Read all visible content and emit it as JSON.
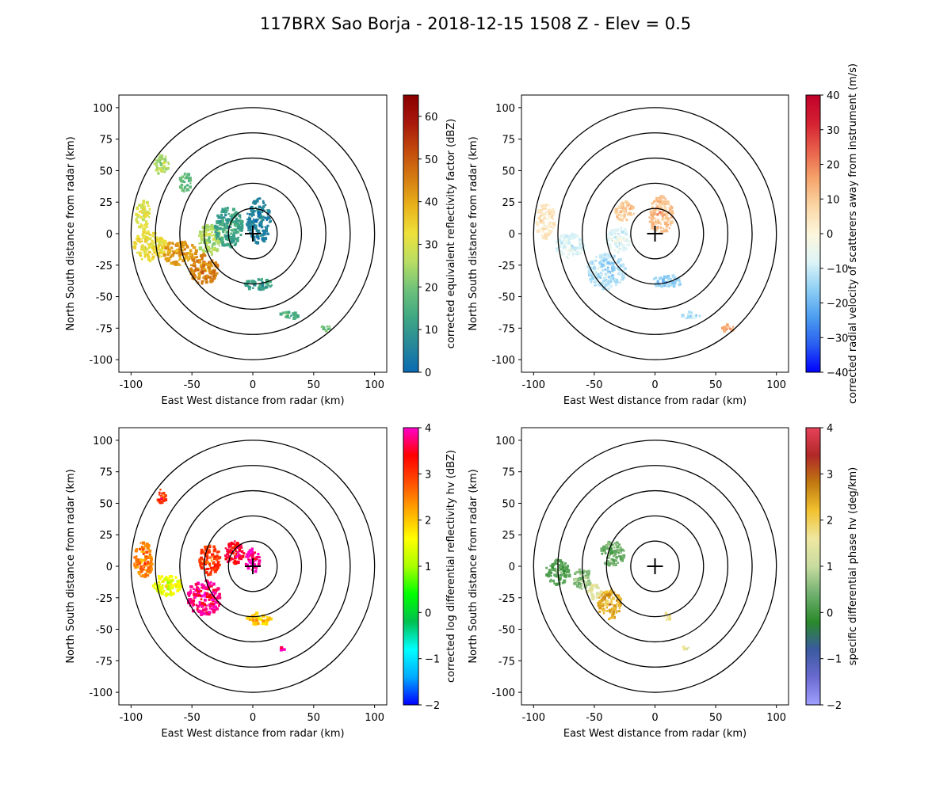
{
  "figure": {
    "title": "117BRX Sao Borja - 2018-12-15 1508 Z -  Elev = 0.5"
  },
  "chart_data": [
    {
      "type": "heatmap",
      "xlabel": "East West distance from radar (km)",
      "ylabel": "North South distance from radar (km)",
      "xlim": [
        -110,
        110
      ],
      "ylim": [
        -110,
        110
      ],
      "xticks": [
        -100,
        -50,
        0,
        50,
        100
      ],
      "yticks": [
        -100,
        -75,
        -50,
        -25,
        0,
        25,
        50,
        75,
        100
      ],
      "range_rings_km": [
        20,
        40,
        60,
        80,
        100
      ],
      "colorbar": {
        "label": "corrected equivalent reflectivity factor (dBZ)",
        "range": [
          0,
          65
        ],
        "ticks": [
          0,
          10,
          20,
          30,
          40,
          50,
          60
        ],
        "colors": [
          "#0a6ab2",
          "#27889a",
          "#3fa883",
          "#6fc27a",
          "#b9de63",
          "#eee13a",
          "#e9b21a",
          "#d47c12",
          "#c24a0c",
          "#a8170b",
          "#8a0000"
        ]
      },
      "echo_regions": [
        {
          "x": -85,
          "y": -10,
          "rx": 14,
          "ry": 12,
          "v": 33
        },
        {
          "x": -60,
          "y": -15,
          "rx": 14,
          "ry": 10,
          "v": 42
        },
        {
          "x": -40,
          "y": -28,
          "rx": 12,
          "ry": 12,
          "v": 45
        },
        {
          "x": -35,
          "y": -5,
          "rx": 10,
          "ry": 12,
          "v": 25
        },
        {
          "x": -90,
          "y": 15,
          "rx": 6,
          "ry": 12,
          "v": 30
        },
        {
          "x": -75,
          "y": 55,
          "rx": 6,
          "ry": 8,
          "v": 25
        },
        {
          "x": -55,
          "y": 40,
          "rx": 5,
          "ry": 8,
          "v": 18
        },
        {
          "x": -20,
          "y": 5,
          "rx": 12,
          "ry": 16,
          "v": 12
        },
        {
          "x": 5,
          "y": 10,
          "rx": 10,
          "ry": 18,
          "v": 5
        },
        {
          "x": 5,
          "y": -40,
          "rx": 12,
          "ry": 5,
          "v": 12
        },
        {
          "x": 30,
          "y": -65,
          "rx": 8,
          "ry": 3,
          "v": 15
        },
        {
          "x": 60,
          "y": -75,
          "rx": 4,
          "ry": 3,
          "v": 20
        }
      ]
    },
    {
      "type": "heatmap",
      "xlabel": "East West distance from radar (km)",
      "ylabel": "North South distance from radar (km)",
      "xlim": [
        -110,
        110
      ],
      "ylim": [
        -110,
        110
      ],
      "xticks": [
        -100,
        -50,
        0,
        50,
        100
      ],
      "yticks": [
        -100,
        -75,
        -50,
        -25,
        0,
        25,
        50,
        75,
        100
      ],
      "range_rings_km": [
        20,
        40,
        60,
        80,
        100
      ],
      "colorbar": {
        "label": "corrected radial velocity of scatterers away from instrument (m/s)",
        "range": [
          -40,
          40
        ],
        "ticks": [
          -40,
          -30,
          -20,
          -10,
          0,
          10,
          20,
          30,
          40
        ],
        "colors": [
          "#0000ff",
          "#2a5ef0",
          "#4d9ef0",
          "#8fd0f5",
          "#dff5f7",
          "#fdf6dc",
          "#fbd6a5",
          "#f5a36a",
          "#e8604a",
          "#d42032",
          "#c0002a"
        ]
      },
      "echo_regions": [
        {
          "x": -90,
          "y": 10,
          "rx": 8,
          "ry": 14,
          "v": 4
        },
        {
          "x": -70,
          "y": -10,
          "rx": 12,
          "ry": 10,
          "v": -8
        },
        {
          "x": -40,
          "y": -30,
          "rx": 16,
          "ry": 14,
          "v": -12
        },
        {
          "x": -30,
          "y": -5,
          "rx": 10,
          "ry": 10,
          "v": -8
        },
        {
          "x": -25,
          "y": 18,
          "rx": 8,
          "ry": 8,
          "v": 10
        },
        {
          "x": 5,
          "y": 15,
          "rx": 10,
          "ry": 15,
          "v": 12
        },
        {
          "x": 10,
          "y": -38,
          "rx": 12,
          "ry": 5,
          "v": -15
        },
        {
          "x": 30,
          "y": -65,
          "rx": 8,
          "ry": 3,
          "v": -12
        },
        {
          "x": 60,
          "y": -75,
          "rx": 5,
          "ry": 3,
          "v": 15
        }
      ]
    },
    {
      "type": "heatmap",
      "xlabel": "East West distance from radar (km)",
      "ylabel": "North South distance from radar (km)",
      "xlim": [
        -110,
        110
      ],
      "ylim": [
        -110,
        110
      ],
      "xticks": [
        -100,
        -50,
        0,
        50,
        100
      ],
      "yticks": [
        -100,
        -75,
        -50,
        -25,
        0,
        25,
        50,
        75,
        100
      ],
      "range_rings_km": [
        20,
        40,
        60,
        80,
        100
      ],
      "colorbar": {
        "label": "corrected log differential reflectivity hv (dBZ)",
        "range": [
          -2,
          4
        ],
        "ticks": [
          -2,
          -1,
          0,
          1,
          2,
          3,
          4
        ],
        "colors": [
          "#0000ff",
          "#00aaff",
          "#00ffff",
          "#00c050",
          "#00ff00",
          "#aaff00",
          "#ffff00",
          "#ffaa00",
          "#ff5000",
          "#ff0000",
          "#ff00cc"
        ]
      },
      "echo_regions": [
        {
          "x": -90,
          "y": 5,
          "rx": 8,
          "ry": 14,
          "v": 2.5
        },
        {
          "x": -70,
          "y": -15,
          "rx": 12,
          "ry": 9,
          "v": 1.5
        },
        {
          "x": -40,
          "y": -25,
          "rx": 14,
          "ry": 14,
          "v": 3.8
        },
        {
          "x": -35,
          "y": 5,
          "rx": 9,
          "ry": 12,
          "v": 3.0
        },
        {
          "x": -15,
          "y": 10,
          "rx": 8,
          "ry": 10,
          "v": 3.5
        },
        {
          "x": -75,
          "y": 55,
          "rx": 4,
          "ry": 6,
          "v": 3.0
        },
        {
          "x": 0,
          "y": 5,
          "rx": 6,
          "ry": 10,
          "v": 3.9
        },
        {
          "x": 5,
          "y": -42,
          "rx": 10,
          "ry": 5,
          "v": 2.0
        },
        {
          "x": 25,
          "y": -65,
          "rx": 3,
          "ry": 2,
          "v": 4.0
        }
      ]
    },
    {
      "type": "heatmap",
      "xlabel": "East West distance from radar (km)",
      "ylabel": "North South distance from radar (km)",
      "xlim": [
        -110,
        110
      ],
      "ylim": [
        -110,
        110
      ],
      "xticks": [
        -100,
        -50,
        0,
        50,
        100
      ],
      "yticks": [
        -100,
        -75,
        -50,
        -25,
        0,
        25,
        50,
        75,
        100
      ],
      "range_rings_km": [
        20,
        40,
        60,
        80,
        100
      ],
      "colorbar": {
        "label": "specific differential phase hv (deg/km)",
        "range": [
          -2,
          4
        ],
        "ticks": [
          -2,
          -1,
          0,
          1,
          2,
          3,
          4
        ],
        "colors": [
          "#a0a0ff",
          "#6a6ad0",
          "#3a5aa0",
          "#2a8a2a",
          "#70b070",
          "#c8dca0",
          "#efe7a0",
          "#f2c230",
          "#c07a10",
          "#b02828",
          "#e8425a"
        ]
      },
      "echo_regions": [
        {
          "x": -80,
          "y": -5,
          "rx": 10,
          "ry": 10,
          "v": 0.2
        },
        {
          "x": -60,
          "y": -10,
          "rx": 8,
          "ry": 8,
          "v": 0.6
        },
        {
          "x": -38,
          "y": -30,
          "rx": 10,
          "ry": 12,
          "v": 2.4
        },
        {
          "x": -35,
          "y": 10,
          "rx": 10,
          "ry": 10,
          "v": 0.4
        },
        {
          "x": -50,
          "y": -20,
          "rx": 6,
          "ry": 6,
          "v": 1.5
        },
        {
          "x": 10,
          "y": -40,
          "rx": 3,
          "ry": 3,
          "v": 1.8
        },
        {
          "x": 25,
          "y": -65,
          "rx": 3,
          "ry": 2,
          "v": 1.5
        }
      ]
    }
  ]
}
